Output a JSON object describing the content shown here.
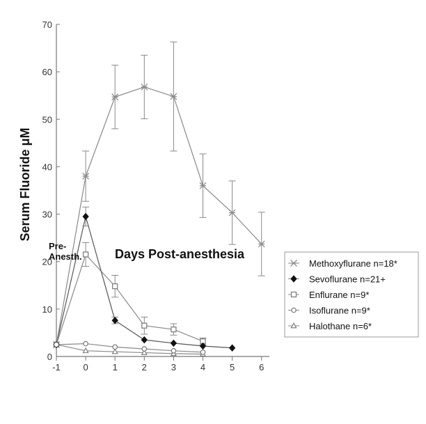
{
  "chart_data": {
    "type": "line",
    "xlabel": "Days Post-anesthesia",
    "ylabel": "Serum Fluoride μM",
    "pre_label_line1": "Pre-",
    "pre_label_line2": "Anesth.",
    "xlim": [
      -1,
      6.5
    ],
    "ylim": [
      0,
      70
    ],
    "xticks": [
      -1,
      0,
      1,
      2,
      3,
      4,
      5,
      6
    ],
    "yticks": [
      0,
      10,
      20,
      30,
      40,
      50,
      60,
      70
    ],
    "legend_position": "right",
    "series": [
      {
        "name": "Methoxyflurane n=18*",
        "marker": "asterisk",
        "color": "#8c8c8c",
        "x": [
          -1,
          0,
          1,
          2,
          3,
          4,
          5,
          6
        ],
        "y": [
          2.5,
          38,
          54.7,
          56.8,
          54.8,
          36,
          30.3,
          23.7
        ],
        "err": [
          0,
          5.3,
          6.7,
          6.7,
          11.5,
          6.7,
          6.7,
          6.7
        ]
      },
      {
        "name": "Sevoflurane n=21+",
        "marker": "diamond",
        "color": "#111111",
        "x": [
          -1,
          0,
          1,
          2,
          3,
          4,
          5
        ],
        "y": [
          2.5,
          29.5,
          7.6,
          3.5,
          2.8,
          2.2,
          1.8
        ],
        "err": [
          0,
          2,
          0.7,
          0,
          0,
          0,
          0
        ]
      },
      {
        "name": "Enflurane n=9*",
        "marker": "square",
        "color": "#8c8c8c",
        "x": [
          -1,
          0,
          1,
          2,
          3,
          4
        ],
        "y": [
          2.5,
          21.5,
          14.8,
          6.5,
          5.7,
          3.2
        ],
        "err": [
          0,
          2.5,
          2.3,
          1.8,
          1.2,
          0.7
        ]
      },
      {
        "name": "Isoflurane n=9*",
        "marker": "circle",
        "color": "#8c8c8c",
        "x": [
          -1,
          0,
          1,
          2,
          3,
          4
        ],
        "y": [
          2.5,
          2.7,
          2.0,
          1.6,
          1.2,
          0.9
        ],
        "err": [
          0,
          0,
          0,
          0,
          0,
          0
        ]
      },
      {
        "name": "Halothane n=6*",
        "marker": "triangle",
        "color": "#8c8c8c",
        "x": [
          -1,
          0,
          1,
          2,
          3,
          4
        ],
        "y": [
          2.5,
          1.2,
          1.0,
          0.8,
          0.6,
          0.5
        ],
        "err": [
          0,
          0,
          0,
          0,
          0,
          0
        ]
      }
    ]
  }
}
